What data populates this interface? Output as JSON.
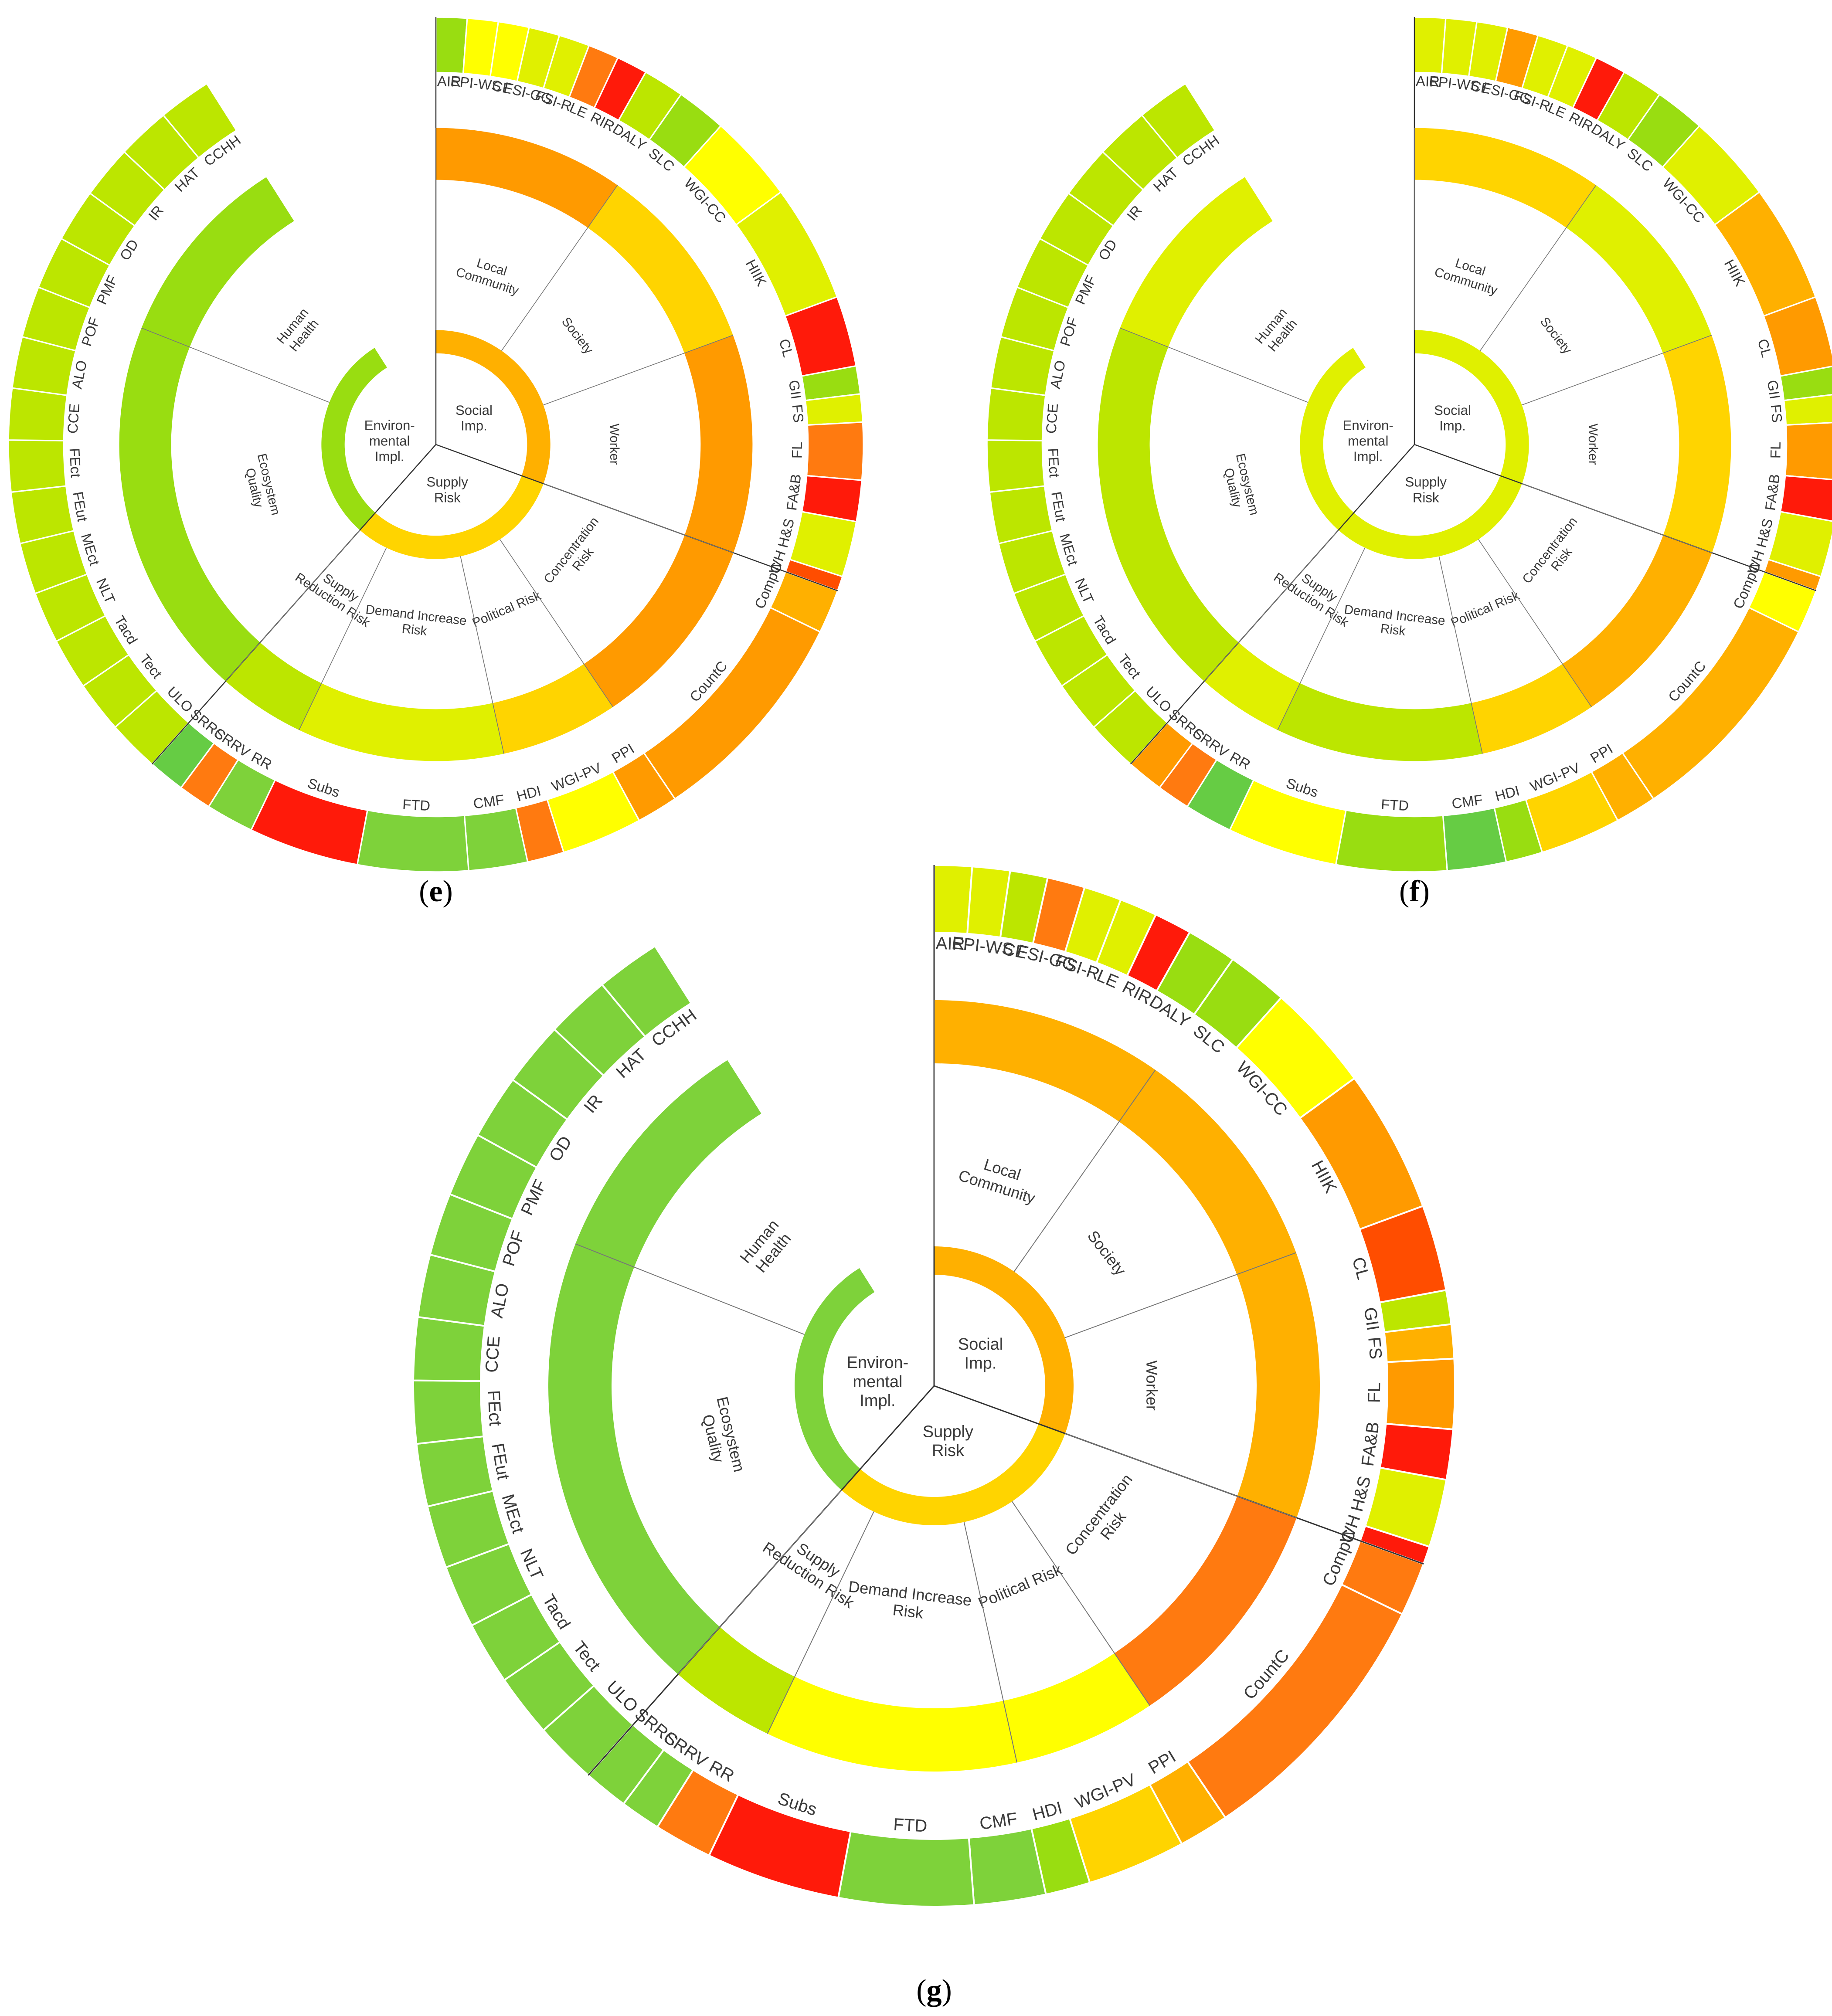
{
  "colors": {
    "red": "#ff1a0a",
    "orange_red": "#ff4d00",
    "orange": "#ff7a10",
    "dark_amber": "#ff9a00",
    "amber": "#ffb000",
    "gold": "#ffd400",
    "yellow": "#ffff00",
    "yellow_green": "#e0f000",
    "lime": "#bce600",
    "light_green": "#99dd11",
    "green": "#7ed23a",
    "dark_green": "#66cc44"
  },
  "structure": {
    "categories": [
      {
        "label": "Social\nImp.",
        "subcategories": [
          {
            "label": "Local\nCommunity",
            "indicators": [
              "AIR",
              "EPI-WS",
              "CE",
              "FSI-GG",
              "FSI-R",
              "LE",
              "RIR",
              "DALY"
            ]
          },
          {
            "label": "Society",
            "indicators": [
              "SLC",
              "WGI-CC",
              "HIIK"
            ]
          },
          {
            "label": "Worker",
            "indicators": [
              "CL",
              "GII",
              "FS",
              "FL",
              "FA&B",
              "H&S",
              "WH"
            ]
          }
        ]
      },
      {
        "label": "Supply\nRisk",
        "subcategories": [
          {
            "label": "Concentration\nRisk",
            "indicators": [
              "CompC",
              "CountC"
            ]
          },
          {
            "label": "Political Risk",
            "indicators": [
              "PPI",
              "WGI-PV",
              "HDI"
            ]
          },
          {
            "label": "Demand Increase\nRisk",
            "indicators": [
              "CMF",
              "FTD",
              "Subs"
            ]
          },
          {
            "label": "Supply\nReduction Risk",
            "indicators": [
              "RR",
              "SRRV",
              "SRRC"
            ]
          }
        ]
      },
      {
        "label": "Environ-\nmental\nImpl.",
        "subcategories": [
          {
            "label": "Ecosystem\nQuality",
            "indicators": [
              "ULO",
              "Tect",
              "Tacd",
              "NLT",
              "MEct",
              "FEut",
              "FEct",
              "CCE",
              "ALO",
              "POF"
            ]
          },
          {
            "label": "Human\nHealth",
            "indicators": [
              "PMF",
              "OD",
              "IR",
              "HAT",
              "CCHH"
            ]
          }
        ]
      }
    ]
  },
  "panels": [
    {
      "label": "e",
      "categories": [
        "amber",
        "gold",
        "light_green"
      ],
      "subcategories": [
        "dark_amber",
        "gold",
        "dark_amber",
        "dark_amber",
        "gold",
        "yellow_green",
        "lime",
        "light_green",
        "light_green"
      ],
      "indicators": [
        "light_green",
        "yellow",
        "yellow",
        "yellow_green",
        "yellow_green",
        "orange",
        "red",
        "lime",
        "light_green",
        "yellow",
        "yellow_green",
        "red",
        "light_green",
        "yellow_green",
        "orange",
        "red",
        "yellow_green",
        "orange_red",
        "amber",
        "dark_amber",
        "dark_amber",
        "yellow",
        "orange",
        "green",
        "green",
        "red",
        "green",
        "orange",
        "dark_green",
        "lime",
        "lime",
        "lime",
        "lime",
        "lime",
        "lime",
        "lime",
        "lime",
        "lime",
        "lime",
        "lime",
        "lime",
        "lime",
        "lime",
        "lime"
      ]
    },
    {
      "label": "f",
      "categories": [
        "yellow_green",
        "yellow_green",
        "yellow_green"
      ],
      "subcategories": [
        "gold",
        "yellow_green",
        "gold",
        "amber",
        "gold",
        "lime",
        "yellow_green",
        "lime",
        "yellow_green"
      ],
      "indicators": [
        "yellow_green",
        "yellow_green",
        "yellow_green",
        "dark_amber",
        "yellow_green",
        "yellow_green",
        "red",
        "lime",
        "light_green",
        "yellow_green",
        "amber",
        "dark_amber",
        "light_green",
        "yellow_green",
        "dark_amber",
        "red",
        "yellow_green",
        "dark_amber",
        "yellow",
        "amber",
        "amber",
        "gold",
        "light_green",
        "dark_green",
        "light_green",
        "yellow",
        "dark_green",
        "orange",
        "dark_amber",
        "lime",
        "lime",
        "lime",
        "lime",
        "lime",
        "lime",
        "lime",
        "lime",
        "lime",
        "lime",
        "lime",
        "lime",
        "lime",
        "lime",
        "lime"
      ]
    },
    {
      "label": "g",
      "categories": [
        "amber",
        "gold",
        "green"
      ],
      "subcategories": [
        "amber",
        "amber",
        "amber",
        "orange",
        "yellow",
        "yellow",
        "lime",
        "green",
        "green"
      ],
      "indicators": [
        "yellow_green",
        "yellow_green",
        "lime",
        "orange",
        "yellow_green",
        "yellow_green",
        "red",
        "light_green",
        "light_green",
        "yellow",
        "dark_amber",
        "orange_red",
        "lime",
        "amber",
        "dark_amber",
        "red",
        "yellow_green",
        "red",
        "orange",
        "orange",
        "amber",
        "gold",
        "light_green",
        "green",
        "green",
        "red",
        "orange",
        "green",
        "green",
        "green",
        "green",
        "green",
        "green",
        "green",
        "green",
        "green",
        "green",
        "green",
        "green",
        "green",
        "green",
        "green",
        "green",
        "green"
      ]
    }
  ]
}
